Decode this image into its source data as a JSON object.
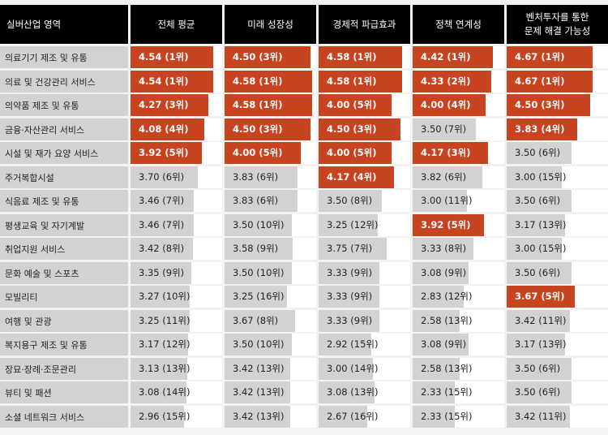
{
  "chart_data": {
    "type": "table",
    "row_header": "실버산업 영역",
    "columns": [
      "전체 평균",
      "미래 성장성",
      "경제적 파급효과",
      "정책 연계성",
      "벤처투자를 통한\n문제 해결 가능성"
    ],
    "bar_scale_max": 5,
    "colors": {
      "highlight": "#c8431f",
      "bar": "#d3d2d0",
      "header": "#000000"
    },
    "rows": [
      {
        "label": "의료기기 제조 및 유통",
        "values": [
          4.54,
          4.5,
          4.58,
          4.42,
          4.67
        ],
        "cells": [
          "4.54 (1위)",
          "4.50 (3위)",
          "4.58 (1위)",
          "4.42 (1위)",
          "4.67 (1위)"
        ],
        "highlight": [
          true,
          true,
          true,
          true,
          true
        ]
      },
      {
        "label": "의료 및 건강관리 서비스",
        "values": [
          4.54,
          4.58,
          4.58,
          4.33,
          4.67
        ],
        "cells": [
          "4.54 (1위)",
          "4.58 (1위)",
          "4.58 (1위)",
          "4.33 (2위)",
          "4.67 (1위)"
        ],
        "highlight": [
          true,
          true,
          true,
          true,
          true
        ]
      },
      {
        "label": "의약품 제조 및 유통",
        "values": [
          4.27,
          4.58,
          4.0,
          4.0,
          4.5
        ],
        "cells": [
          "4.27 (3위)",
          "4.58 (1위)",
          "4.00 (5위)",
          "4.00 (4위)",
          "4.50 (3위)"
        ],
        "highlight": [
          true,
          true,
          true,
          true,
          true
        ]
      },
      {
        "label": "금융·자산관리 서비스",
        "values": [
          4.08,
          4.5,
          4.5,
          3.5,
          3.83
        ],
        "cells": [
          "4.08 (4위)",
          "4.50 (3위)",
          "4.50 (3위)",
          "3.50 (7위)",
          "3.83 (4위)"
        ],
        "highlight": [
          true,
          true,
          true,
          false,
          true
        ]
      },
      {
        "label": "시설 및 재가 요양 서비스",
        "values": [
          3.92,
          4.0,
          4.0,
          4.17,
          3.5
        ],
        "cells": [
          "3.92 (5위)",
          "4.00 (5위)",
          "4.00 (5위)",
          "4.17 (3위)",
          "3.50 (6위)"
        ],
        "highlight": [
          true,
          true,
          true,
          true,
          false
        ]
      },
      {
        "label": "주거복합시설",
        "values": [
          3.7,
          3.83,
          4.17,
          3.82,
          3.0
        ],
        "cells": [
          "3.70 (6위)",
          "3.83 (6위)",
          "4.17 (4위)",
          "3.82 (6위)",
          "3.00 (15위)"
        ],
        "highlight": [
          false,
          false,
          true,
          false,
          false
        ]
      },
      {
        "label": "식음료 제조 및 유통",
        "values": [
          3.46,
          3.83,
          3.5,
          3.0,
          3.5
        ],
        "cells": [
          "3.46 (7위)",
          "3.83 (6위)",
          "3.50 (8위)",
          "3.00 (11위)",
          "3.50 (6위)"
        ],
        "highlight": [
          false,
          false,
          false,
          false,
          false
        ]
      },
      {
        "label": "평생교육 및 자기계발",
        "values": [
          3.46,
          3.5,
          3.25,
          3.92,
          3.17
        ],
        "cells": [
          "3.46 (7위)",
          "3.50 (10위)",
          "3.25 (12위)",
          "3.92 (5위)",
          "3.17 (13위)"
        ],
        "highlight": [
          false,
          false,
          false,
          true,
          false
        ]
      },
      {
        "label": "취업지원 서비스",
        "values": [
          3.42,
          3.58,
          3.75,
          3.33,
          3.0
        ],
        "cells": [
          "3.42 (8위)",
          "3.58 (9위)",
          "3.75 (7위)",
          "3.33 (8위)",
          "3.00 (15위)"
        ],
        "highlight": [
          false,
          false,
          false,
          false,
          false
        ]
      },
      {
        "label": "문화 예술 및 스포츠",
        "values": [
          3.35,
          3.5,
          3.33,
          3.08,
          3.5
        ],
        "cells": [
          "3.35 (9위)",
          "3.50 (10위)",
          "3.33 (9위)",
          "3.08 (9위)",
          "3.50 (6위)"
        ],
        "highlight": [
          false,
          false,
          false,
          false,
          false
        ]
      },
      {
        "label": "모빌리티",
        "values": [
          3.27,
          3.25,
          3.33,
          2.83,
          3.67
        ],
        "cells": [
          "3.27 (10위)",
          "3.25 (16위)",
          "3.33 (9위)",
          "2.83 (12위)",
          "3.67 (5위)"
        ],
        "highlight": [
          false,
          false,
          false,
          false,
          true
        ]
      },
      {
        "label": "여행 및 관광",
        "values": [
          3.25,
          3.67,
          3.33,
          2.58,
          3.42
        ],
        "cells": [
          "3.25 (11위)",
          "3.67 (8위)",
          "3.33 (9위)",
          "2.58 (13위)",
          "3.42 (11위)"
        ],
        "highlight": [
          false,
          false,
          false,
          false,
          false
        ]
      },
      {
        "label": "복지용구 제조 및 유통",
        "values": [
          3.17,
          3.5,
          2.92,
          3.08,
          3.17
        ],
        "cells": [
          "3.17 (12위)",
          "3.50 (10위)",
          "2.92 (15위)",
          "3.08 (9위)",
          "3.17 (13위)"
        ],
        "highlight": [
          false,
          false,
          false,
          false,
          false
        ]
      },
      {
        "label": "장묘·장례·조문관리",
        "values": [
          3.13,
          3.42,
          3.0,
          2.58,
          3.5
        ],
        "cells": [
          "3.13 (13위)",
          "3.42 (13위)",
          "3.00 (14위)",
          "2.58 (13위)",
          "3.50 (6위)"
        ],
        "highlight": [
          false,
          false,
          false,
          false,
          false
        ]
      },
      {
        "label": "뷰티 및 패션",
        "values": [
          3.08,
          3.42,
          3.08,
          2.33,
          3.5
        ],
        "cells": [
          "3.08 (14위)",
          "3.42 (13위)",
          "3.08 (13위)",
          "2.33 (15위)",
          "3.50 (6위)"
        ],
        "highlight": [
          false,
          false,
          false,
          false,
          false
        ]
      },
      {
        "label": "소셜 네트워크 서비스",
        "values": [
          2.96,
          3.42,
          2.67,
          2.33,
          3.42
        ],
        "cells": [
          "2.96 (15위)",
          "3.42 (13위)",
          "2.67 (16위)",
          "2.33 (15위)",
          "3.42 (11위)"
        ],
        "highlight": [
          false,
          false,
          false,
          false,
          false
        ]
      }
    ]
  }
}
